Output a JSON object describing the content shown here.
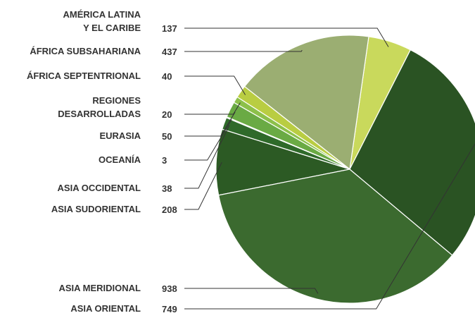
{
  "chart_data": {
    "type": "pie",
    "categories": [
      "AMÉRICA LATINA\nY EL CARIBE",
      "ÁFRICA SUBSAHARIANA",
      "ÁFRICA SEPTENTRIONAL",
      "REGIONES\nDESARROLLADAS",
      "EURASIA",
      "OCEANÍA",
      "ASIA OCCIDENTAL",
      "ASIA SUDORIENTAL",
      "ASIA MERIDIONAL",
      "ASIA ORIENTAL"
    ],
    "values": [
      137,
      437,
      40,
      20,
      50,
      3,
      38,
      208,
      938,
      749
    ],
    "colors": [
      "#c9d95c",
      "#9bae72",
      "#b9cd42",
      "#8cc04a",
      "#6aaa44",
      "#4d8a36",
      "#2f6a2a",
      "#2c5a24",
      "#3b6a2f",
      "#2a5323"
    ]
  }
}
